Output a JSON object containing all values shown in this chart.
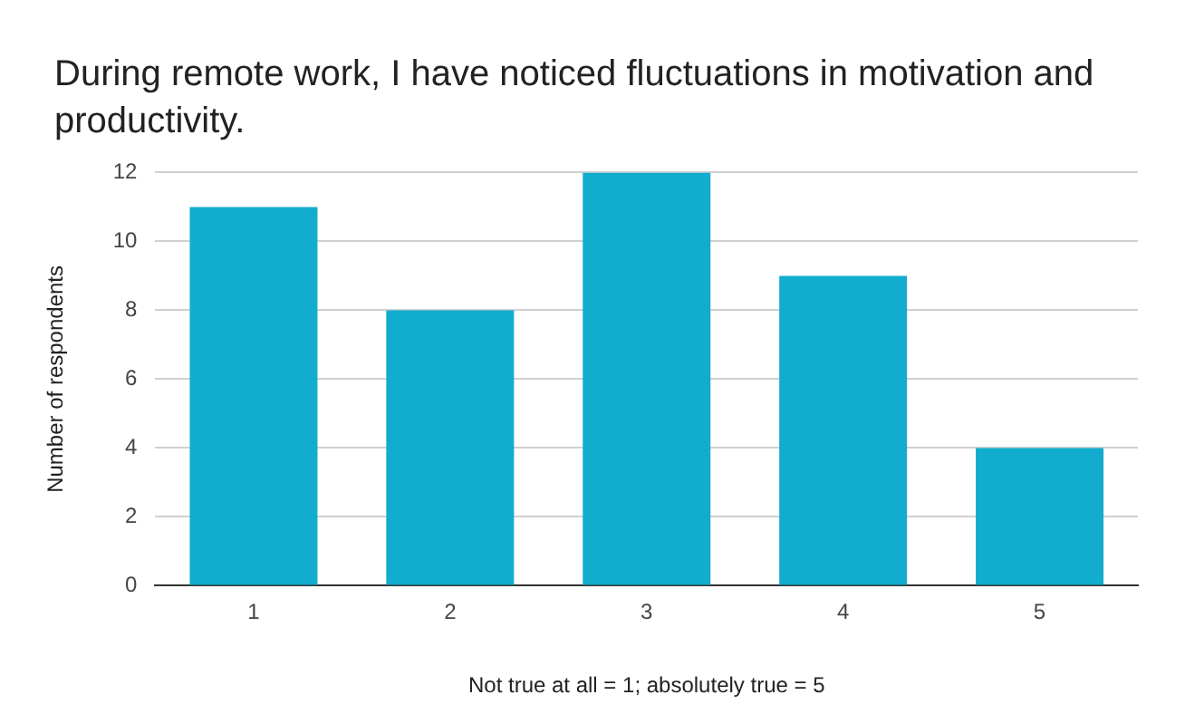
{
  "chart_data": {
    "type": "bar",
    "title": "During remote work, I have noticed fluctuations in motivation and productivity.",
    "xlabel": "Not true at all = 1; absolutely true = 5",
    "ylabel": "Number of respondents",
    "categories": [
      "1",
      "2",
      "3",
      "4",
      "5"
    ],
    "values": [
      11,
      8,
      12,
      9,
      4
    ],
    "color": "#12acce",
    "ylim": [
      0,
      12
    ],
    "yticks": [
      0,
      2,
      4,
      6,
      8,
      10,
      12
    ],
    "grid": "y"
  }
}
